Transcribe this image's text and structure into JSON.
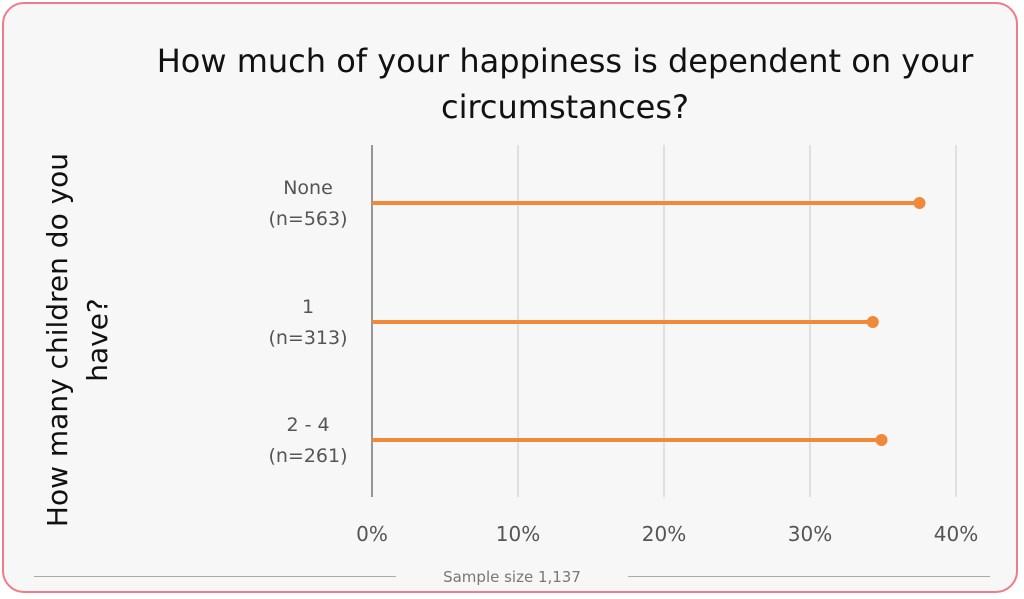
{
  "chart_data": {
    "type": "lollipop",
    "title": "How much of your happiness is dependent on your circumstances?",
    "ylabel": "How many children do you have?",
    "xlabel": "",
    "categories": [
      {
        "name": "None",
        "n": "(n=563)"
      },
      {
        "name": "1",
        "n": "(n=313)"
      },
      {
        "name": "2 - 4",
        "n": "(n=261)"
      }
    ],
    "values": [
      37.5,
      34.3,
      34.9
    ],
    "xlim": [
      0,
      40
    ],
    "xticks": [
      "0%",
      "10%",
      "20%",
      "30%",
      "40%"
    ],
    "grid": true,
    "series_color": "#f08a3a",
    "footer": "Sample size 1,137"
  }
}
